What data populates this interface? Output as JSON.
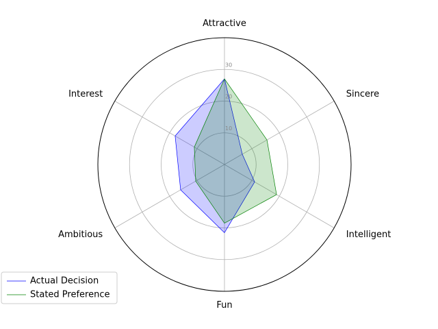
{
  "chart_data": {
    "type": "radar",
    "categories": [
      "Attractive",
      "Sincere",
      "Intelligent",
      "Fun",
      "Ambitious",
      "Interest"
    ],
    "rticks": [
      10,
      20,
      30
    ],
    "rlim": [
      0,
      40
    ],
    "grid": true,
    "legend": "lower-left",
    "series": [
      {
        "name": "Actual Decision",
        "values": [
          27.0,
          6.5,
          11.0,
          21.5,
          16.0,
          18.0
        ],
        "color": "#0000ff",
        "fill": "#0000ff"
      },
      {
        "name": "Stated Preference",
        "values": [
          27.0,
          15.5,
          19.0,
          18.5,
          10.5,
          11.0
        ],
        "color": "#008000",
        "fill": "#008000"
      }
    ]
  }
}
